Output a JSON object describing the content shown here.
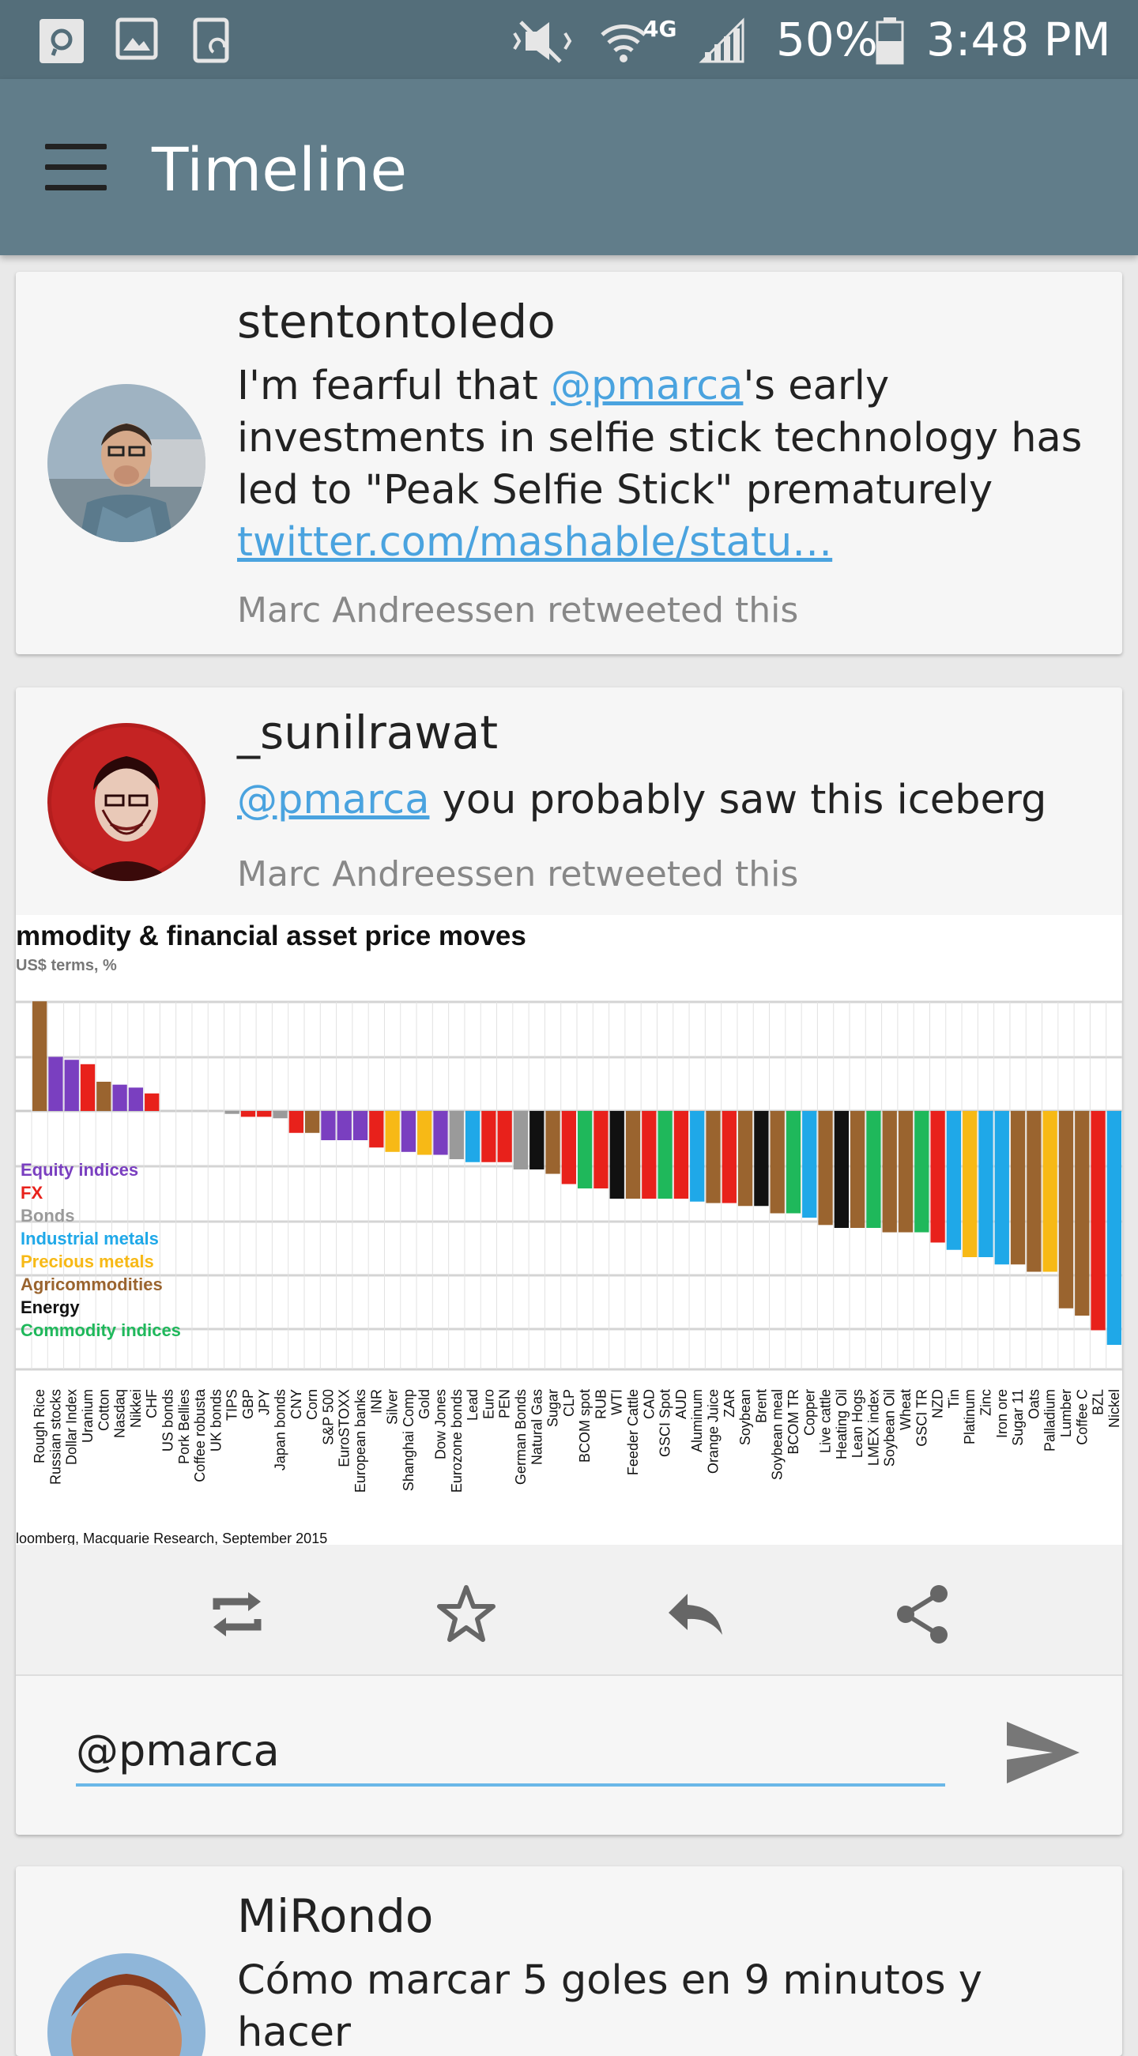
{
  "status_bar": {
    "battery": "50%",
    "time": "3:48 PM",
    "network": "4G"
  },
  "app_bar": {
    "title": "Timeline"
  },
  "tweets": [
    {
      "username": "stentontoledo",
      "text_before": "I'm fearful that ",
      "mention": "@pmarca",
      "text_after": "'s early investments in selfie stick technology has led to \"Peak Selfie Stick\" prematurely",
      "link": "twitter.com/mashable/statu…",
      "retweet_note": "Marc Andreessen retweeted this"
    },
    {
      "username": "_sunilrawat",
      "mention": "@pmarca",
      "text_after": " you probably saw this iceberg",
      "retweet_note": "Marc Andreessen retweeted this"
    },
    {
      "username": "MiRondo",
      "text": "Cómo marcar 5 goles en 9 minutos y hacer"
    }
  ],
  "reply": {
    "value": "@pmarca "
  },
  "chart_data": {
    "type": "bar",
    "title": "mmodity & financial asset price moves",
    "subtitle": "US$ terms, %",
    "source": "loomberg, Macquarie Research, September 2015",
    "legend": [
      {
        "name": "Equity indices",
        "color": "#7a3fc0"
      },
      {
        "name": "FX",
        "color": "#e8211b"
      },
      {
        "name": "Bonds",
        "color": "#9a9a9a"
      },
      {
        "name": "Industrial metals",
        "color": "#1fa8e8"
      },
      {
        "name": "Precious metals",
        "color": "#f7b916"
      },
      {
        "name": "Agricommodities",
        "color": "#9a642f"
      },
      {
        "name": "Energy",
        "color": "#111111"
      },
      {
        "name": "Commodity indices",
        "color": "#1fb85b"
      }
    ],
    "categories": [
      "Rough Rice",
      "Russian stocks",
      "Dollar Index",
      "Uranium",
      "Cotton",
      "Nasdaq",
      "Nikkei",
      "CHF",
      "US bonds",
      "Pork Bellies",
      "Coffee robusta",
      "UK bonds",
      "TIPS",
      "GBP",
      "JPY",
      "Japan bonds",
      "CNY",
      "Corn",
      "S&P 500",
      "EuroSTOXX",
      "European banks",
      "INR",
      "Silver",
      "Shanghai Comp",
      "Gold",
      "Dow Jones",
      "Eurozone bonds",
      "Lead",
      "Euro",
      "PEN",
      "German Bonds",
      "Natural Gas",
      "Sugar",
      "CLP",
      "BCOM spot",
      "RUB",
      "WTI",
      "Feeder Cattle",
      "CAD",
      "GSCI Spot",
      "AUD",
      "Aluminum",
      "Orange Juice",
      "ZAR",
      "Soybean",
      "Brent",
      "Soybean meal",
      "BCOM TR",
      "Copper",
      "Live cattle",
      "Heating Oil",
      "Lean Hogs",
      "LMEX index",
      "Soybean Oil",
      "Wheat",
      "GSCI TR",
      "NZD",
      "Tin",
      "Platinum",
      "Zinc",
      "Iron ore",
      "Sugar 11",
      "Oats",
      "Palladium",
      "Lumber",
      "Coffee C",
      "BZL",
      "Nickel"
    ],
    "colors": [
      "agri",
      "equity",
      "equity",
      "fx",
      "agri",
      "equity",
      "equity",
      "fx",
      "bonds",
      "agri",
      "agri",
      "bonds",
      "bonds",
      "fx",
      "fx",
      "bonds",
      "fx",
      "agri",
      "equity",
      "equity",
      "equity",
      "fx",
      "precious",
      "equity",
      "precious",
      "equity",
      "bonds",
      "indmetal",
      "fx",
      "fx",
      "bonds",
      "energy",
      "agri",
      "fx",
      "commidx",
      "fx",
      "energy",
      "agri",
      "fx",
      "commidx",
      "fx",
      "indmetal",
      "agri",
      "fx",
      "agri",
      "energy",
      "agri",
      "commidx",
      "indmetal",
      "agri",
      "energy",
      "agri",
      "commidx",
      "agri",
      "agri",
      "commidx",
      "fx",
      "indmetal",
      "precious",
      "indmetal",
      "indmetal",
      "agri",
      "agri",
      "precious",
      "agri",
      "agri",
      "fx",
      "indmetal"
    ],
    "values": [
      7.5,
      3.7,
      3.5,
      3.2,
      2.0,
      1.8,
      1.6,
      1.2,
      0,
      0,
      0,
      0,
      -0.2,
      -0.4,
      -0.4,
      -0.5,
      -1.5,
      -1.5,
      -2.0,
      -2.0,
      -2.0,
      -2.5,
      -2.8,
      -2.8,
      -3.0,
      -3.0,
      -3.3,
      -3.5,
      -3.5,
      -3.5,
      -4.0,
      -4.0,
      -4.3,
      -5.0,
      -5.3,
      -5.3,
      -6.0,
      -6.0,
      -6.0,
      -6.0,
      -6.0,
      -6.2,
      -6.3,
      -6.3,
      -6.5,
      -6.5,
      -7.0,
      -7.0,
      -7.3,
      -7.8,
      -8.0,
      -8.0,
      -8.0,
      -8.3,
      -8.3,
      -8.3,
      -9.0,
      -9.5,
      -10.0,
      -10.0,
      -10.5,
      -10.5,
      -11.0,
      -11.0,
      -13.5,
      -14.0,
      -15.0,
      -16.0
    ],
    "ylim": [
      -17,
      10
    ],
    "grid": true
  }
}
